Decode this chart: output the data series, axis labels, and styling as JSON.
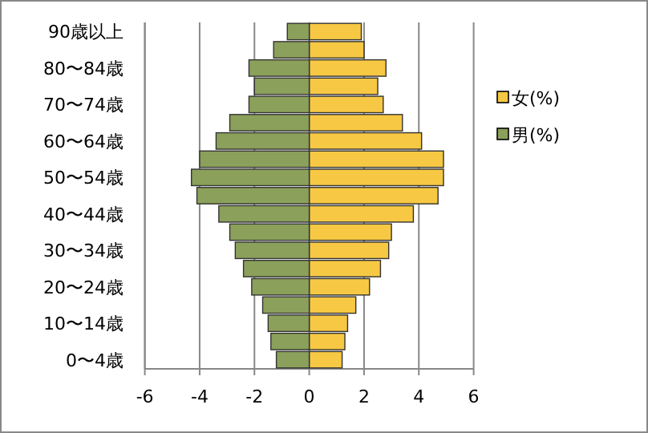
{
  "chart_data": {
    "type": "bar",
    "orientation": "horizontal",
    "stacked": true,
    "categories": [
      "90歳以上",
      null,
      "80〜84歳",
      null,
      "70〜74歳",
      null,
      "60〜64歳",
      null,
      "50〜54歳",
      null,
      "40〜44歳",
      null,
      "30〜34歳",
      null,
      "20〜24歳",
      null,
      "10〜14歳",
      null,
      "0〜4歳"
    ],
    "series": [
      {
        "name": "女(%)",
        "color": "#f7c843",
        "values": [
          1.9,
          2.0,
          2.8,
          2.5,
          2.7,
          3.4,
          4.1,
          4.9,
          4.9,
          4.7,
          3.8,
          3.0,
          2.9,
          2.6,
          2.2,
          1.7,
          1.4,
          1.3,
          1.2
        ]
      },
      {
        "name": "男(%)",
        "color": "#8ba05a",
        "values": [
          -0.8,
          -1.3,
          -2.2,
          -2.0,
          -2.2,
          -2.9,
          -3.4,
          -4.0,
          -4.3,
          -4.1,
          -3.3,
          -2.9,
          -2.7,
          -2.4,
          -2.1,
          -1.7,
          -1.5,
          -1.4,
          -1.2
        ]
      }
    ],
    "xlim": [
      -6,
      6
    ],
    "xticks": [
      -6,
      -4,
      -2,
      0,
      2,
      4,
      6
    ],
    "grid": "x",
    "legend": "right"
  }
}
